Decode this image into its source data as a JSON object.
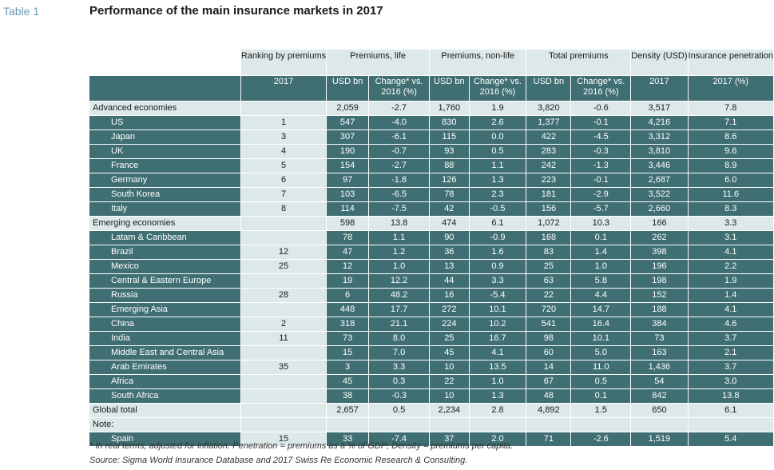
{
  "label": "Table 1",
  "title": "Performance of the main insurance markets in 2017",
  "headers": {
    "ranking": "Ranking by premiums",
    "premiums_life": "Premiums, life",
    "premiums_nonlife": "Premiums, non-life",
    "total_premiums": "Total premiums",
    "density": "Density (USD)",
    "penetration": "Insurance penetration",
    "ranking_sub": "2017",
    "usd_bn": "USD bn",
    "change": "Change* vs. 2016 (%)",
    "density_sub": "2017",
    "penetration_sub": "2017 (%)"
  },
  "sections": [
    {
      "group": [
        "Advanced economies",
        "",
        "2,059",
        "-2.7",
        "1,760",
        "1.9",
        "3,820",
        "-0.6",
        "3,517",
        "7.8"
      ],
      "rows": [
        [
          "US",
          "1",
          "547",
          "-4.0",
          "830",
          "2.6",
          "1,377",
          "-0.1",
          "4,216",
          "7.1"
        ],
        [
          "Japan",
          "3",
          "307",
          "-6.1",
          "115",
          "0.0",
          "422",
          "-4.5",
          "3,312",
          "8.6"
        ],
        [
          "UK",
          "4",
          "190",
          "-0.7",
          "93",
          "0.5",
          "283",
          "-0.3",
          "3,810",
          "9.6"
        ],
        [
          "France",
          "5",
          "154",
          "-2.7",
          "88",
          "1.1",
          "242",
          "-1.3",
          "3,446",
          "8.9"
        ],
        [
          "Germany",
          "6",
          "97",
          "-1.8",
          "126",
          "1.3",
          "223",
          "-0.1",
          "2,687",
          "6.0"
        ],
        [
          "South Korea",
          "7",
          "103",
          "-6.5",
          "78",
          "2.3",
          "181",
          "-2.9",
          "3,522",
          "11.6"
        ],
        [
          "Italy",
          "8",
          "114",
          "-7.5",
          "42",
          "-0.5",
          "156",
          "-5.7",
          "2,660",
          "8.3"
        ]
      ]
    },
    {
      "group": [
        "Emerging economies",
        "",
        "598",
        "13.8",
        "474",
        "6.1",
        "1,072",
        "10.3",
        "166",
        "3.3"
      ],
      "rows": [
        [
          "Latam & Caribbean",
          "",
          "78",
          "1.1",
          "90",
          "-0.9",
          "168",
          "0.1",
          "262",
          "3.1"
        ],
        [
          "Brazil",
          "12",
          "47",
          "1.2",
          "36",
          "1.6",
          "83",
          "1.4",
          "398",
          "4.1"
        ],
        [
          "Mexico",
          "25",
          "12",
          "1.0",
          "13",
          "0.9",
          "25",
          "1.0",
          "196",
          "2.2"
        ],
        [
          "Central & Eastern Europe",
          "",
          "19",
          "12.2",
          "44",
          "3.3",
          "63",
          "5.8",
          "198",
          "1.9"
        ],
        [
          "Russia",
          "28",
          "6",
          "48.2",
          "16",
          "-5.4",
          "22",
          "4.4",
          "152",
          "1.4"
        ],
        [
          "Emerging Asia",
          "",
          "448",
          "17.7",
          "272",
          "10.1",
          "720",
          "14.7",
          "188",
          "4.1"
        ],
        [
          "China",
          "2",
          "318",
          "21.1",
          "224",
          "10.2",
          "541",
          "16.4",
          "384",
          "4.6"
        ],
        [
          "India",
          "11",
          "73",
          "8.0",
          "25",
          "16.7",
          "98",
          "10.1",
          "73",
          "3.7"
        ],
        [
          "Middle East and Central Asia",
          "",
          "15",
          "7.0",
          "45",
          "4.1",
          "60",
          "5.0",
          "163",
          "2.1"
        ],
        [
          "Arab Emirates",
          "35",
          "3",
          "3.3",
          "10",
          "13.5",
          "14",
          "11.0",
          "1,436",
          "3.7"
        ],
        [
          "Africa",
          "",
          "45",
          "0.3",
          "22",
          "1.0",
          "67",
          "0.5",
          "54",
          "3.0"
        ],
        [
          "South Africa",
          "",
          "38",
          "-0.3",
          "10",
          "1.3",
          "48",
          "0.1",
          "842",
          "13.8"
        ]
      ]
    }
  ],
  "global_total": [
    "Global total",
    "",
    "2,657",
    "0.5",
    "2,234",
    "2.8",
    "4,892",
    "1.5",
    "650",
    "6.1"
  ],
  "note_label": "Note:",
  "spain": [
    "Spain",
    "15",
    "33",
    "-7.4",
    "37",
    "2.0",
    "71",
    "-2.6",
    "1,519",
    "5.4"
  ],
  "footnote": "* In real terms, adjusted for inflation. Penetration = premiums as a % of GDP; Density = premiums per capita.",
  "source": "Source: Sigma World Insurance Database and 2017 Swiss Re Economic Research & Consulting."
}
